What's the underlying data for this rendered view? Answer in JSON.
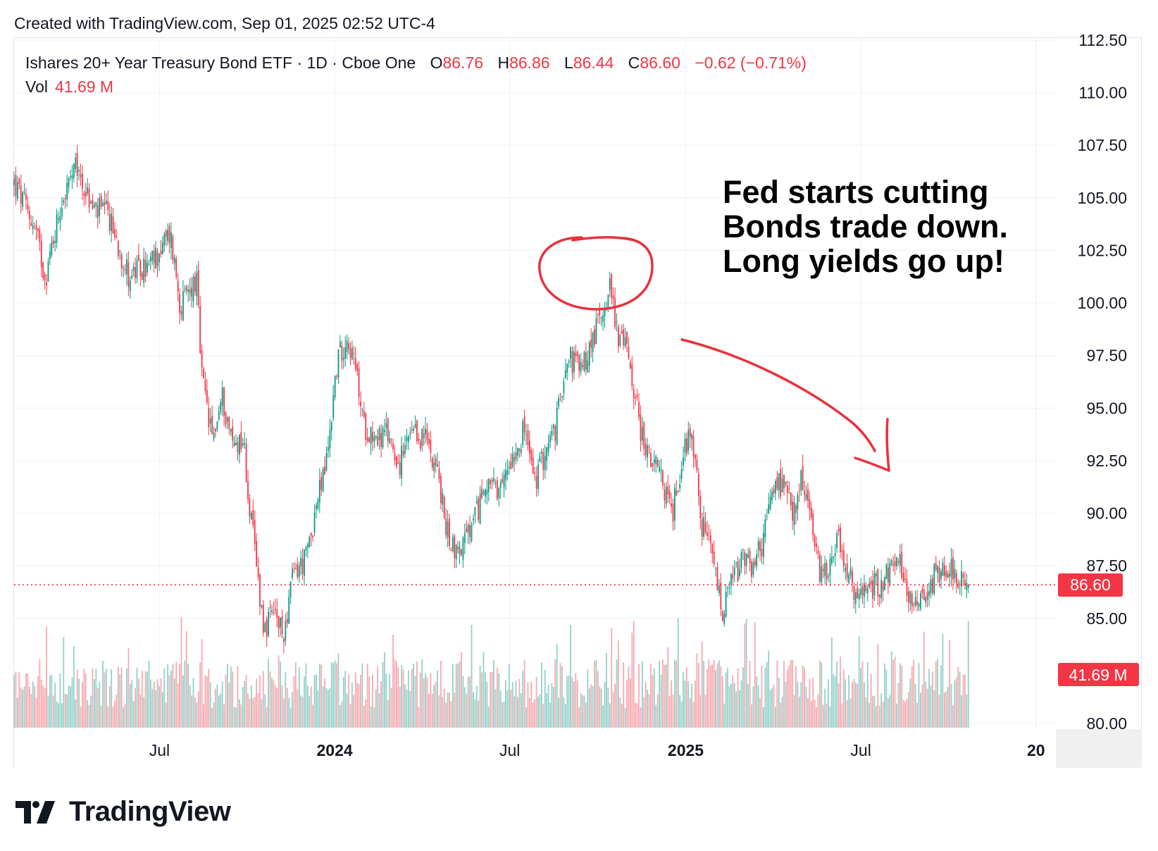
{
  "header": {
    "created_text": "Created with TradingView.com, Sep 01, 2025 02:52 UTC-4"
  },
  "legend": {
    "symbol": "Ishares 20+ Year Treasury Bond ETF · 1D · Cboe One",
    "open_label": "O",
    "open": "86.76",
    "high_label": "H",
    "high": "86.86",
    "low_label": "L",
    "low": "86.44",
    "close_label": "C",
    "close": "86.60",
    "change": "−0.62 (−0.71%)",
    "vol_label": "Vol",
    "vol_value": "41.69 M"
  },
  "annotation": {
    "lines": [
      "Fed starts cutting",
      "Bonds trade down.",
      "Long yields go up!"
    ]
  },
  "brand": {
    "name": "TradingView"
  },
  "colors": {
    "up": "#089981",
    "down": "#f23645",
    "up_vol": "#93d1c8",
    "down_vol": "#f7a9b0",
    "grid": "#f0f3fa",
    "text": "#131722",
    "annotation": "#e8323c"
  },
  "chart_data": {
    "type": "candlestick",
    "title": "Ishares 20+ Year Treasury Bond ETF · 1D · Cboe One",
    "ylim": [
      80.0,
      112.5
    ],
    "y_ticks": [
      "80.00",
      "85.00",
      "87.50",
      "90.00",
      "92.50",
      "95.00",
      "97.50",
      "100.00",
      "102.50",
      "105.00",
      "107.50",
      "110.00",
      "112.50"
    ],
    "x_ticks": [
      {
        "label": "Jul",
        "t": 0.1396,
        "bold": false
      },
      {
        "label": "2024",
        "t": 0.3077,
        "bold": true
      },
      {
        "label": "Jul",
        "t": 0.4758,
        "bold": false
      },
      {
        "label": "2025",
        "t": 0.6447,
        "bold": true
      },
      {
        "label": "Jul",
        "t": 0.8128,
        "bold": false
      },
      {
        "label": "20",
        "t": 0.9809,
        "bold": true
      }
    ],
    "last_price": 86.6,
    "last_price_label": "86.60",
    "last_volume_label": "41.69 M",
    "daily_bars_start": "2023-03",
    "daily_bars_end": "2025-08-29",
    "price_path": [
      [
        0.0,
        105.7
      ],
      [
        0.02,
        103.6
      ],
      [
        0.03,
        101.2
      ],
      [
        0.045,
        104.8
      ],
      [
        0.06,
        106.4
      ],
      [
        0.075,
        104.5
      ],
      [
        0.09,
        104.2
      ],
      [
        0.11,
        101.3
      ],
      [
        0.13,
        101.7
      ],
      [
        0.15,
        103.3
      ],
      [
        0.16,
        99.8
      ],
      [
        0.175,
        101.2
      ],
      [
        0.18,
        96.5
      ],
      [
        0.19,
        93.5
      ],
      [
        0.2,
        95.5
      ],
      [
        0.21,
        93.3
      ],
      [
        0.22,
        93.6
      ],
      [
        0.225,
        90.7
      ],
      [
        0.24,
        84.5
      ],
      [
        0.25,
        85.2
      ],
      [
        0.258,
        84.1
      ],
      [
        0.268,
        87.1
      ],
      [
        0.28,
        87.8
      ],
      [
        0.29,
        90.3
      ],
      [
        0.3,
        92.5
      ],
      [
        0.31,
        97.2
      ],
      [
        0.32,
        98.5
      ],
      [
        0.33,
        96.2
      ],
      [
        0.335,
        94.2
      ],
      [
        0.35,
        93.6
      ],
      [
        0.36,
        93.7
      ],
      [
        0.37,
        92.3
      ],
      [
        0.38,
        93.6
      ],
      [
        0.395,
        93.6
      ],
      [
        0.405,
        92.4
      ],
      [
        0.415,
        89.2
      ],
      [
        0.425,
        88.1
      ],
      [
        0.44,
        89.3
      ],
      [
        0.455,
        91.8
      ],
      [
        0.465,
        90.5
      ],
      [
        0.475,
        92.5
      ],
      [
        0.49,
        94.0
      ],
      [
        0.5,
        91.4
      ],
      [
        0.51,
        93.0
      ],
      [
        0.52,
        94.0
      ],
      [
        0.53,
        97.6
      ],
      [
        0.545,
        96.8
      ],
      [
        0.555,
        98.2
      ],
      [
        0.565,
        99.8
      ],
      [
        0.572,
        100.8
      ],
      [
        0.58,
        98.5
      ],
      [
        0.59,
        97.6
      ],
      [
        0.6,
        94.3
      ],
      [
        0.61,
        92.5
      ],
      [
        0.62,
        91.8
      ],
      [
        0.632,
        90.0
      ],
      [
        0.64,
        92.3
      ],
      [
        0.65,
        94.2
      ],
      [
        0.66,
        89.5
      ],
      [
        0.67,
        88.0
      ],
      [
        0.68,
        85.1
      ],
      [
        0.69,
        86.9
      ],
      [
        0.7,
        87.7
      ],
      [
        0.71,
        87.4
      ],
      [
        0.72,
        88.9
      ],
      [
        0.73,
        91.6
      ],
      [
        0.74,
        91.0
      ],
      [
        0.75,
        89.8
      ],
      [
        0.755,
        91.9
      ],
      [
        0.765,
        89.7
      ],
      [
        0.772,
        87.4
      ],
      [
        0.78,
        87.3
      ],
      [
        0.79,
        88.9
      ],
      [
        0.8,
        87.3
      ],
      [
        0.808,
        85.8
      ],
      [
        0.82,
        86.5
      ],
      [
        0.83,
        86.6
      ],
      [
        0.84,
        87.3
      ],
      [
        0.85,
        87.6
      ],
      [
        0.86,
        86.0
      ],
      [
        0.875,
        86.1
      ],
      [
        0.885,
        87.2
      ],
      [
        0.9,
        87.6
      ],
      [
        0.91,
        86.6
      ],
      [
        0.916,
        86.6
      ]
    ]
  }
}
